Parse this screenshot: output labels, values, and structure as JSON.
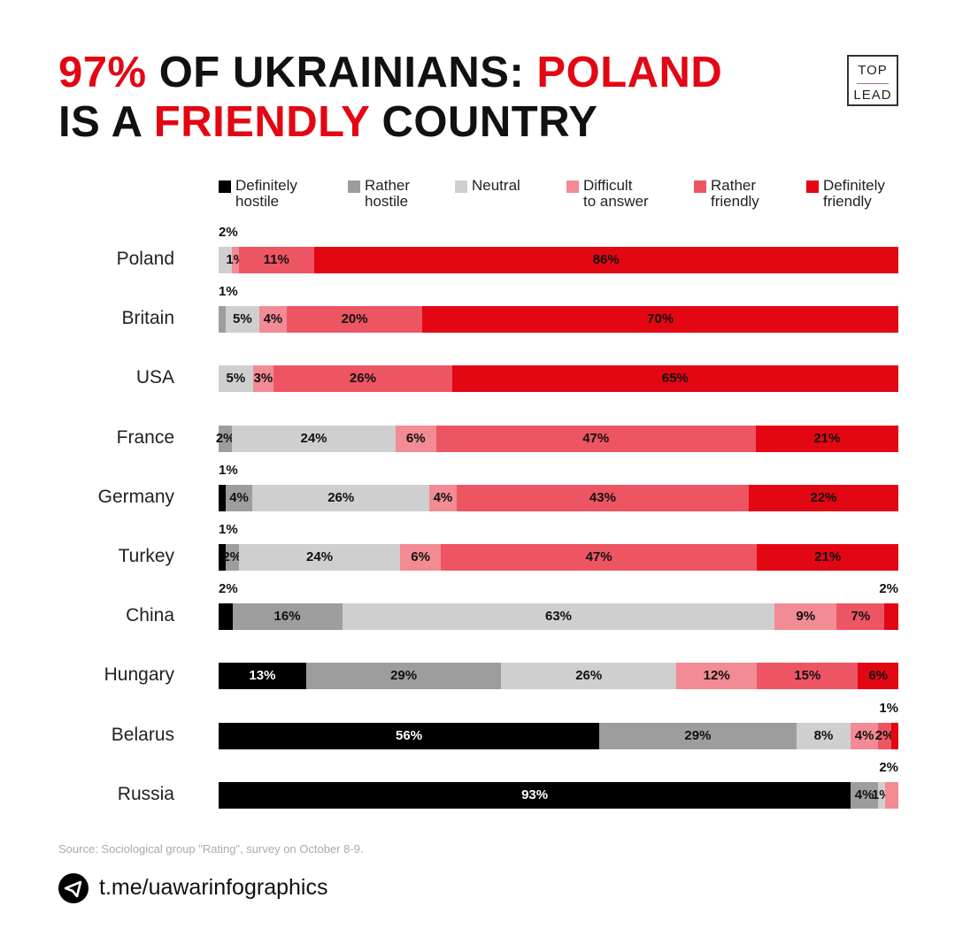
{
  "title": {
    "line1": [
      {
        "text": "97%",
        "red": true
      },
      {
        "text": " OF UKRAINIANS: ",
        "red": false
      },
      {
        "text": "POLAND",
        "red": true
      }
    ],
    "line2": [
      {
        "text": "IS A ",
        "red": false
      },
      {
        "text": "FRIENDLY",
        "red": true
      },
      {
        "text": " COUNTRY",
        "red": false
      }
    ]
  },
  "logo": {
    "top": "TOP",
    "bottom": "LEAD"
  },
  "colors": [
    "#000000",
    "#9d9d9d",
    "#cfcfcf",
    "#f28b94",
    "#ee5563",
    "#e30613"
  ],
  "chart_data": {
    "type": "bar",
    "orientation": "horizontal-stacked",
    "unit": "%",
    "series": [
      {
        "name": "Definitely hostile",
        "lines": [
          "Definitely",
          "hostile"
        ]
      },
      {
        "name": "Rather hostile",
        "lines": [
          "Rather",
          "hostile"
        ]
      },
      {
        "name": "Neutral",
        "lines": [
          "Neutral",
          ""
        ]
      },
      {
        "name": "Difficult to answer",
        "lines": [
          "Difficult",
          "to answer"
        ]
      },
      {
        "name": "Rather friendly",
        "lines": [
          "Rather",
          "friendly"
        ]
      },
      {
        "name": "Definitely friendly",
        "lines": [
          "Definitely",
          "friendly"
        ]
      }
    ],
    "legend_position": "top",
    "categories": [
      "Poland",
      "Britain",
      "USA",
      "France",
      "Germany",
      "Turkey",
      "China",
      "Hungary",
      "Belarus",
      "Russia"
    ],
    "values": [
      [
        0,
        0,
        2,
        1,
        11,
        86
      ],
      [
        0,
        1,
        5,
        4,
        20,
        70
      ],
      [
        0,
        0,
        5,
        3,
        26,
        65
      ],
      [
        0,
        2,
        24,
        6,
        47,
        21
      ],
      [
        1,
        4,
        26,
        4,
        43,
        22
      ],
      [
        1,
        2,
        24,
        6,
        47,
        21
      ],
      [
        2,
        16,
        63,
        9,
        7,
        2
      ],
      [
        13,
        29,
        26,
        12,
        15,
        6
      ],
      [
        56,
        29,
        8,
        4,
        2,
        1
      ],
      [
        93,
        4,
        1,
        2,
        0,
        0
      ]
    ],
    "labels_above": [
      [
        2
      ],
      [
        1
      ],
      [],
      [],
      [
        0
      ],
      [
        0
      ],
      [
        0,
        5
      ],
      [],
      [
        5
      ],
      [
        3
      ]
    ]
  },
  "footer": {
    "source": "Source: Sociological group \"Rating\", survey on October 8-9.",
    "link": "t.me/uawarinfographics"
  }
}
